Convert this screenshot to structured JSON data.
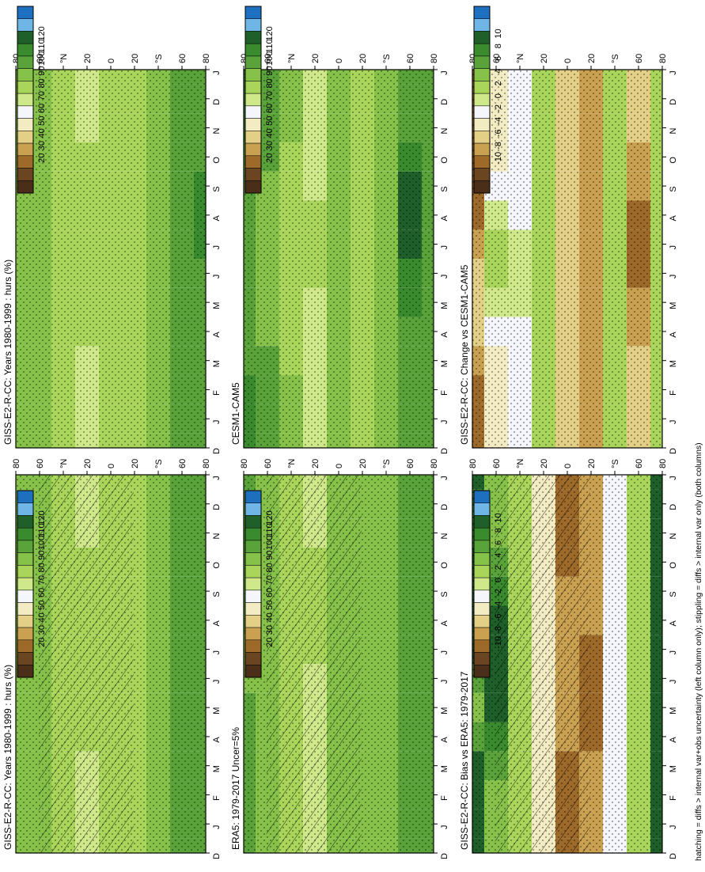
{
  "footer_note": "hatching = diffs > internal var+obs uncertainty (left column only); stippling = diffs > internal var only (both columns)",
  "month_labels": [
    "D",
    "J",
    "F",
    "M",
    "A",
    "M",
    "J",
    "J",
    "A",
    "S",
    "O",
    "N",
    "D",
    "J"
  ],
  "lat_labels": [
    "80",
    "60",
    "°N",
    "20",
    "0",
    "20",
    "°S",
    "60",
    "80"
  ],
  "lat_values": [
    80,
    60,
    40,
    20,
    0,
    -20,
    -40,
    -60,
    -80
  ],
  "palettes": {
    "hurs": [
      "#1f6fbf",
      "#6fb6e6",
      "#1f5f2a",
      "#3a8a2e",
      "#5aa33a",
      "#86c24a",
      "#a9d65a",
      "#cfe88a",
      "#f4f6fb",
      "#f3ecc3",
      "#e3cf86",
      "#c9a150",
      "#9d6a2a",
      "#6b4422",
      "#4a2e1a"
    ],
    "diff": [
      "#1f6fbf",
      "#6fb6e6",
      "#1f5f2a",
      "#3a8a2e",
      "#5aa33a",
      "#86c24a",
      "#a9d65a",
      "#cfe88a",
      "#f4f6fb",
      "#f3ecc3",
      "#e3cf86",
      "#c9a150",
      "#9d6a2a",
      "#6b4422",
      "#4a2e1a"
    ]
  },
  "colorbars": {
    "hurs": [
      "120",
      "110",
      "100",
      "90",
      "80",
      "70",
      "60",
      "50",
      "40",
      "30",
      "20"
    ],
    "diff": [
      "10",
      "8",
      "6",
      "4",
      "2",
      "0",
      "-2",
      "-4",
      "-6",
      "-8",
      "-10"
    ]
  },
  "chart_data": [
    {
      "type": "heatmap",
      "title": "GISS-E2-R-CC: Years 1980-1999 : hurs (%)",
      "x": [
        "D",
        "J",
        "F",
        "M",
        "A",
        "M",
        "J",
        "J",
        "A",
        "S",
        "O",
        "N",
        "D",
        "J"
      ],
      "y": [
        80,
        60,
        40,
        20,
        0,
        -20,
        -40,
        -60,
        -80
      ],
      "units": "%",
      "palette": "hurs",
      "stippling": true,
      "hatching": true,
      "values": [
        [
          85,
          85,
          85,
          85,
          85,
          85,
          85,
          85,
          85,
          85,
          85,
          85,
          85,
          85
        ],
        [
          82,
          82,
          82,
          82,
          82,
          80,
          78,
          78,
          80,
          82,
          82,
          82,
          82,
          82
        ],
        [
          75,
          75,
          75,
          75,
          72,
          70,
          66,
          66,
          68,
          70,
          72,
          74,
          75,
          75
        ],
        [
          60,
          60,
          62,
          65,
          66,
          66,
          68,
          68,
          68,
          68,
          66,
          62,
          60,
          60
        ],
        [
          74,
          74,
          74,
          74,
          74,
          74,
          74,
          74,
          74,
          74,
          74,
          74,
          74,
          74
        ],
        [
          68,
          68,
          68,
          68,
          66,
          66,
          66,
          66,
          68,
          70,
          72,
          70,
          68,
          68
        ],
        [
          80,
          80,
          80,
          80,
          80,
          80,
          80,
          80,
          80,
          80,
          80,
          80,
          80,
          80
        ],
        [
          86,
          86,
          86,
          86,
          86,
          86,
          86,
          86,
          86,
          86,
          86,
          86,
          86,
          86
        ],
        [
          88,
          88,
          88,
          88,
          88,
          90,
          92,
          94,
          94,
          92,
          90,
          88,
          88,
          88
        ]
      ]
    },
    {
      "type": "heatmap",
      "title": "GISS-E2-R-CC: Years 1980-1999 : hurs (%)",
      "x": [
        "D",
        "J",
        "F",
        "M",
        "A",
        "M",
        "J",
        "J",
        "A",
        "S",
        "O",
        "N",
        "D",
        "J"
      ],
      "y": [
        80,
        60,
        40,
        20,
        0,
        -20,
        -40,
        -60,
        -80
      ],
      "units": "%",
      "palette": "hurs",
      "stippling": true,
      "hatching": false,
      "values": [
        [
          85,
          85,
          85,
          85,
          85,
          85,
          85,
          85,
          85,
          85,
          85,
          85,
          85,
          85
        ],
        [
          82,
          82,
          82,
          82,
          82,
          80,
          78,
          78,
          80,
          82,
          82,
          82,
          82,
          82
        ],
        [
          75,
          75,
          75,
          75,
          72,
          70,
          66,
          66,
          68,
          70,
          72,
          74,
          75,
          75
        ],
        [
          60,
          60,
          62,
          65,
          66,
          66,
          68,
          68,
          68,
          68,
          66,
          62,
          60,
          60
        ],
        [
          74,
          74,
          74,
          74,
          74,
          74,
          74,
          74,
          74,
          74,
          74,
          74,
          74,
          74
        ],
        [
          68,
          68,
          68,
          68,
          66,
          66,
          66,
          66,
          68,
          70,
          72,
          70,
          68,
          68
        ],
        [
          80,
          80,
          80,
          80,
          80,
          80,
          80,
          80,
          80,
          80,
          80,
          80,
          80,
          80
        ],
        [
          86,
          86,
          86,
          86,
          86,
          86,
          86,
          86,
          86,
          86,
          86,
          86,
          86,
          86
        ],
        [
          88,
          88,
          88,
          88,
          88,
          90,
          92,
          96,
          98,
          96,
          90,
          88,
          88,
          88
        ]
      ]
    },
    {
      "type": "heatmap",
      "title": "ERA5: 1979-2017 Uncer=5%",
      "x": [
        "D",
        "J",
        "F",
        "M",
        "A",
        "M",
        "J",
        "J",
        "A",
        "S",
        "O",
        "N",
        "D",
        "J"
      ],
      "y": [
        80,
        60,
        40,
        20,
        0,
        -20,
        -40,
        -60,
        -80
      ],
      "units": "%",
      "palette": "hurs",
      "stippling": true,
      "hatching": true,
      "values": [
        [
          88,
          88,
          88,
          88,
          88,
          86,
          84,
          84,
          86,
          88,
          88,
          88,
          88,
          88
        ],
        [
          82,
          82,
          82,
          82,
          80,
          78,
          76,
          76,
          78,
          80,
          82,
          82,
          82,
          82
        ],
        [
          72,
          72,
          72,
          72,
          70,
          68,
          66,
          66,
          68,
          70,
          70,
          72,
          72,
          72
        ],
        [
          64,
          64,
          64,
          64,
          62,
          62,
          64,
          66,
          66,
          66,
          66,
          64,
          64,
          64
        ],
        [
          78,
          78,
          78,
          78,
          78,
          78,
          78,
          78,
          78,
          78,
          78,
          78,
          78,
          78
        ],
        [
          76,
          76,
          76,
          76,
          76,
          76,
          76,
          76,
          76,
          76,
          76,
          76,
          76,
          76
        ],
        [
          82,
          82,
          82,
          82,
          82,
          82,
          82,
          82,
          82,
          82,
          82,
          82,
          82,
          82
        ],
        [
          86,
          86,
          86,
          86,
          86,
          86,
          86,
          86,
          86,
          86,
          86,
          86,
          86,
          86
        ],
        [
          88,
          88,
          88,
          88,
          88,
          88,
          88,
          88,
          88,
          88,
          88,
          88,
          88,
          88
        ]
      ]
    },
    {
      "type": "heatmap",
      "title": "CESM1-CAM5",
      "x": [
        "D",
        "J",
        "F",
        "M",
        "A",
        "M",
        "J",
        "J",
        "A",
        "S",
        "O",
        "N",
        "D",
        "J"
      ],
      "y": [
        80,
        60,
        40,
        20,
        0,
        -20,
        -40,
        -60,
        -80
      ],
      "units": "%",
      "palette": "hurs",
      "stippling": true,
      "hatching": false,
      "values": [
        [
          98,
          98,
          96,
          94,
          92,
          90,
          88,
          88,
          90,
          92,
          94,
          96,
          98,
          98
        ],
        [
          86,
          86,
          86,
          86,
          84,
          82,
          80,
          80,
          82,
          84,
          86,
          86,
          86,
          86
        ],
        [
          76,
          76,
          76,
          74,
          72,
          70,
          68,
          68,
          70,
          72,
          74,
          76,
          76,
          76
        ],
        [
          64,
          64,
          64,
          64,
          64,
          64,
          66,
          66,
          66,
          64,
          64,
          64,
          64,
          64
        ],
        [
          80,
          80,
          80,
          80,
          80,
          80,
          80,
          80,
          80,
          80,
          80,
          80,
          80,
          80
        ],
        [
          74,
          74,
          74,
          72,
          70,
          68,
          68,
          68,
          70,
          72,
          74,
          74,
          74,
          74
        ],
        [
          82,
          82,
          82,
          82,
          82,
          82,
          82,
          82,
          82,
          82,
          82,
          82,
          82,
          82
        ],
        [
          88,
          88,
          88,
          88,
          92,
          98,
          104,
          112,
          112,
          106,
          96,
          90,
          88,
          88
        ],
        [
          86,
          86,
          86,
          86,
          86,
          86,
          86,
          86,
          86,
          86,
          86,
          86,
          86,
          86
        ]
      ]
    },
    {
      "type": "heatmap",
      "title": "GISS-E2-R-CC: Bias vs ERA5: 1979-2017",
      "x": [
        "D",
        "J",
        "F",
        "M",
        "A",
        "M",
        "J",
        "J",
        "A",
        "S",
        "O",
        "N",
        "D",
        "J"
      ],
      "y": [
        80,
        60,
        40,
        20,
        0,
        -20,
        -40,
        -60,
        -80
      ],
      "units": "%",
      "palette": "diff",
      "stippling": true,
      "hatching": true,
      "values": [
        [
          10,
          10,
          10,
          10,
          6,
          4,
          6,
          10,
          10,
          10,
          10,
          8,
          8,
          10
        ],
        [
          4,
          4,
          4,
          6,
          8,
          10,
          10,
          10,
          10,
          8,
          6,
          4,
          4,
          4
        ],
        [
          2,
          2,
          2,
          2,
          2,
          2,
          2,
          2,
          2,
          2,
          2,
          2,
          2,
          2
        ],
        [
          -4,
          -4,
          -4,
          -4,
          -4,
          -4,
          -4,
          -4,
          -4,
          -4,
          -4,
          -4,
          -4,
          -4
        ],
        [
          -10,
          -10,
          -10,
          -10,
          -8,
          -8,
          -8,
          -8,
          -8,
          -8,
          -10,
          -10,
          -10,
          -10
        ],
        [
          -8,
          -8,
          -8,
          -8,
          -10,
          -10,
          -10,
          -10,
          -8,
          -8,
          -8,
          -8,
          -8,
          -8
        ],
        [
          -2,
          -2,
          -2,
          -2,
          -2,
          -2,
          -2,
          -2,
          -2,
          -2,
          -2,
          -2,
          -2,
          -2
        ],
        [
          2,
          2,
          2,
          2,
          2,
          2,
          2,
          2,
          2,
          2,
          2,
          2,
          2,
          2
        ],
        [
          10,
          10,
          10,
          10,
          10,
          10,
          10,
          10,
          10,
          10,
          10,
          10,
          10,
          10
        ]
      ]
    },
    {
      "type": "heatmap",
      "title": "GISS-E2-R-CC: Change vs CESM1-CAM5",
      "x": [
        "D",
        "J",
        "F",
        "M",
        "A",
        "M",
        "J",
        "J",
        "A",
        "S",
        "O",
        "N",
        "D",
        "J"
      ],
      "y": [
        80,
        60,
        40,
        20,
        0,
        -20,
        -40,
        -60,
        -80
      ],
      "units": "%",
      "palette": "diff",
      "stippling": true,
      "hatching": false,
      "values": [
        [
          -10,
          -10,
          -10,
          -8,
          -6,
          -6,
          -6,
          -8,
          -10,
          -10,
          -10,
          -10,
          -10,
          -10
        ],
        [
          -4,
          -4,
          -4,
          -4,
          -2,
          0,
          2,
          2,
          0,
          -2,
          -4,
          -4,
          -4,
          -4
        ],
        [
          -2,
          -2,
          -2,
          -2,
          -2,
          0,
          0,
          0,
          -2,
          -2,
          -2,
          -2,
          -2,
          -2
        ],
        [
          2,
          2,
          2,
          2,
          2,
          2,
          2,
          2,
          2,
          2,
          2,
          2,
          2,
          2
        ],
        [
          -6,
          -6,
          -6,
          -6,
          -6,
          -6,
          -6,
          -6,
          -6,
          -6,
          -6,
          -6,
          -6,
          -6
        ],
        [
          -8,
          -8,
          -8,
          -8,
          -8,
          -8,
          -8,
          -8,
          -8,
          -8,
          -8,
          -8,
          -8,
          -8
        ],
        [
          2,
          2,
          2,
          2,
          2,
          2,
          2,
          2,
          2,
          2,
          2,
          2,
          2,
          2
        ],
        [
          -6,
          -6,
          -6,
          -6,
          -8,
          -8,
          -10,
          -10,
          -10,
          -8,
          -8,
          -6,
          -6,
          -6
        ],
        [
          2,
          2,
          2,
          2,
          2,
          2,
          2,
          2,
          2,
          2,
          2,
          2,
          2,
          2
        ]
      ]
    }
  ]
}
